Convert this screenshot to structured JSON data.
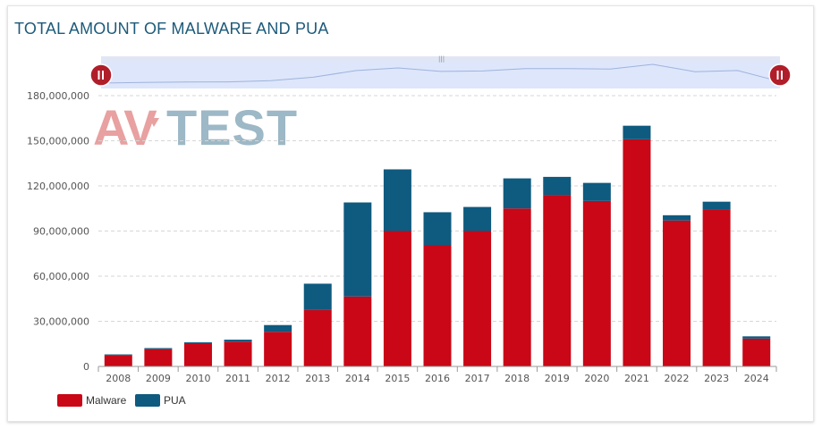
{
  "title": "TOTAL AMOUNT OF MALWARE AND PUA",
  "logo": {
    "text": "AV-TEST",
    "left_text": "AV",
    "right_text": "TEST",
    "left_color": "#e8a0a0",
    "right_color": "#9db8c6"
  },
  "colors": {
    "malware": "#c90716",
    "pua": "#0f5a7f",
    "navigator_fill": "#dde6fb",
    "handle": "#b01e2a"
  },
  "chart_data": {
    "type": "bar",
    "stacked": true,
    "categories": [
      "2008",
      "2009",
      "2010",
      "2011",
      "2012",
      "2013",
      "2014",
      "2015",
      "2016",
      "2017",
      "2018",
      "2019",
      "2020",
      "2021",
      "2022",
      "2023",
      "2024"
    ],
    "series": [
      {
        "name": "Malware",
        "values": [
          7500000,
          11500000,
          15500000,
          16500000,
          23000000,
          37500000,
          46500000,
          90000000,
          80500000,
          90000000,
          105000000,
          114000000,
          110000000,
          151000000,
          97000000,
          104500000,
          18500000
        ]
      },
      {
        "name": "PUA",
        "values": [
          500000,
          700000,
          600000,
          1300000,
          4500000,
          17500000,
          62500000,
          41000000,
          22000000,
          16000000,
          20000000,
          12000000,
          12000000,
          9000000,
          3500000,
          5000000,
          1500000
        ]
      }
    ],
    "yticks": [
      0,
      30000000,
      60000000,
      90000000,
      120000000,
      150000000,
      180000000
    ],
    "ytick_labels": [
      "0",
      "30,000,000",
      "60,000,000",
      "90,000,000",
      "120,000,000",
      "150,000,000",
      "180,000,000"
    ],
    "ylim": [
      0,
      180000000
    ],
    "grid": true,
    "legend_position": "bottom-left"
  }
}
